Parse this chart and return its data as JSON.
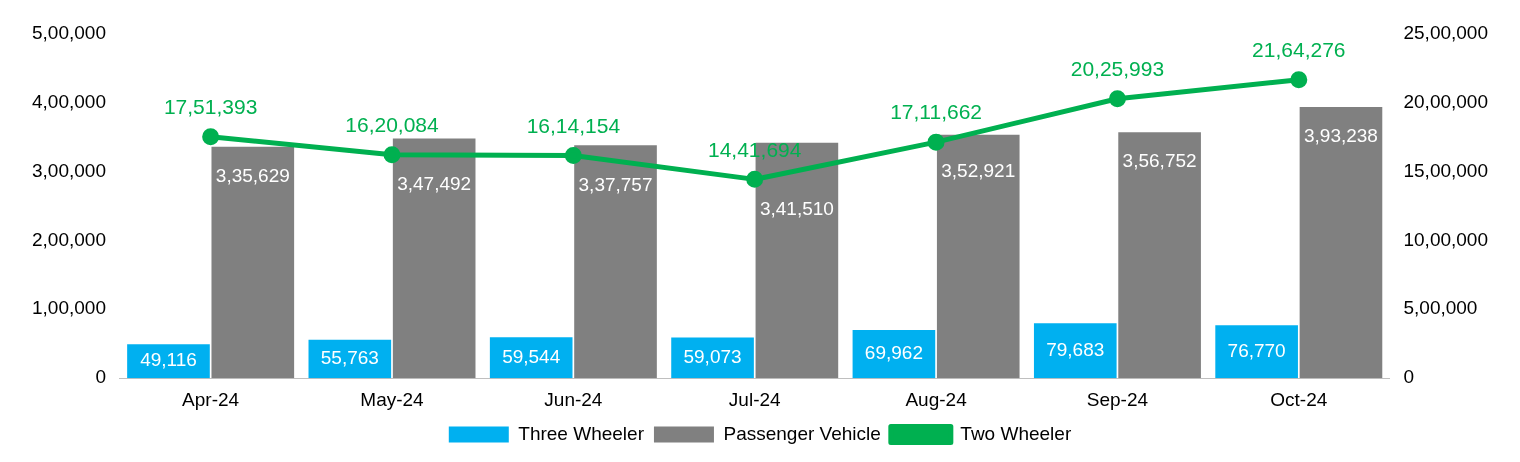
{
  "chart_data": {
    "type": "bar",
    "categories": [
      "Apr-24",
      "May-24",
      "Jun-24",
      "Jul-24",
      "Aug-24",
      "Sep-24",
      "Oct-24"
    ],
    "series": [
      {
        "name": "Three Wheeler",
        "color": "#00b0f0",
        "values": [
          49116,
          55763,
          59544,
          59073,
          69962,
          79683,
          76770
        ],
        "value_labels": [
          "49,116",
          "55,763",
          "59,544",
          "59,073",
          "69,962",
          "79,683",
          "76,770"
        ]
      },
      {
        "name": "Passenger Vehicle",
        "color": "#808080",
        "values": [
          335629,
          347492,
          337757,
          341510,
          352921,
          356752,
          393238
        ],
        "value_labels": [
          "3,35,629",
          "3,47,492",
          "3,37,757",
          "3,41,510",
          "3,52,921",
          "3,56,752",
          "3,93,238"
        ]
      },
      {
        "name": "Two Wheeler",
        "type": "line",
        "axis": "y2",
        "color": "#00b050",
        "marker": "circle",
        "values": [
          1751393,
          1620084,
          1614154,
          1441694,
          1711662,
          2025993,
          2164276
        ],
        "value_labels": [
          "17,51,393",
          "16,20,084",
          "16,14,154",
          "14,41,694",
          "17,11,662",
          "20,25,993",
          "21,64,276"
        ]
      }
    ],
    "ylim": [
      0,
      500000
    ],
    "yticks": [
      0,
      {
        "value": 100000,
        "label": "1,00,000"
      },
      {
        "value": 200000,
        "label": "2,00,000"
      },
      {
        "value": 300000,
        "label": "3,00,000"
      },
      {
        "value": 400000,
        "label": "4,00,000"
      },
      {
        "value": 500000,
        "label": "5,00,000"
      }
    ],
    "y2lim": [
      0,
      2500000
    ],
    "y2ticks": [
      0,
      {
        "value": 500000,
        "label": "5,00,000"
      },
      {
        "value": 1000000,
        "label": "10,00,000"
      },
      {
        "value": 1500000,
        "label": "15,00,000"
      },
      {
        "value": 2000000,
        "label": "20,00,000"
      },
      {
        "value": 2500000,
        "label": "25,00,000"
      }
    ],
    "grid": false,
    "legend": "bottom"
  }
}
